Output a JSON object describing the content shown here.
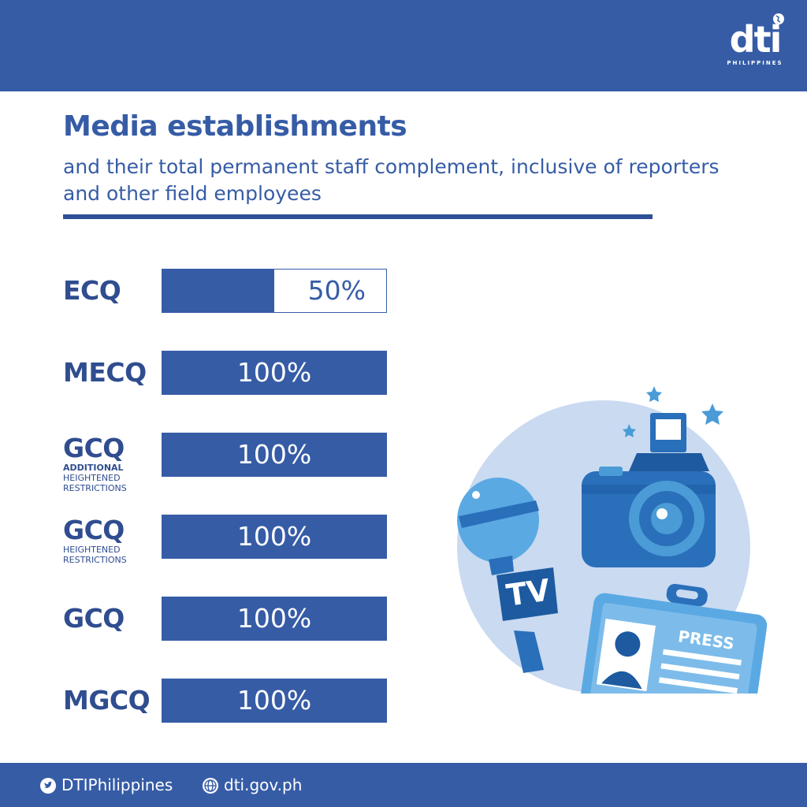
{
  "brand": {
    "logo_text": "dti",
    "logo_subtext": "PHILIPPINES",
    "accent_color": "#365ca6",
    "dark_color": "#2f4d8f"
  },
  "header": {
    "title": "Media establishments",
    "subtitle": "and their total permanent staff complement, inclusive of reporters and other field employees"
  },
  "chart_data": {
    "type": "bar",
    "orientation": "horizontal",
    "xlim": [
      0,
      100
    ],
    "categories": [
      {
        "label": "ECQ",
        "sub_strong": "",
        "sub": "",
        "value": 50,
        "value_label": "50%"
      },
      {
        "label": "MECQ",
        "sub_strong": "",
        "sub": "",
        "value": 100,
        "value_label": "100%"
      },
      {
        "label": "GCQ",
        "sub_strong": "ADDITIONAL",
        "sub": "HEIGHTENED RESTRICTIONS",
        "value": 100,
        "value_label": "100%"
      },
      {
        "label": "GCQ",
        "sub_strong": "",
        "sub": "HEIGHTENED RESTRICTIONS",
        "value": 100,
        "value_label": "100%"
      },
      {
        "label": "GCQ",
        "sub_strong": "",
        "sub": "",
        "value": 100,
        "value_label": "100%"
      },
      {
        "label": "MGCQ",
        "sub_strong": "",
        "sub": "",
        "value": 100,
        "value_label": "100%"
      }
    ]
  },
  "illustration": {
    "icons": [
      "camera-icon",
      "microphone-icon",
      "press-badge-icon",
      "star-icon"
    ],
    "mic_label": "TV",
    "badge_label": "PRESS"
  },
  "footer": {
    "twitter_icon": "twitter-icon",
    "twitter_handle": "DTIPhilippines",
    "web_icon": "globe-icon",
    "website": "dti.gov.ph"
  }
}
